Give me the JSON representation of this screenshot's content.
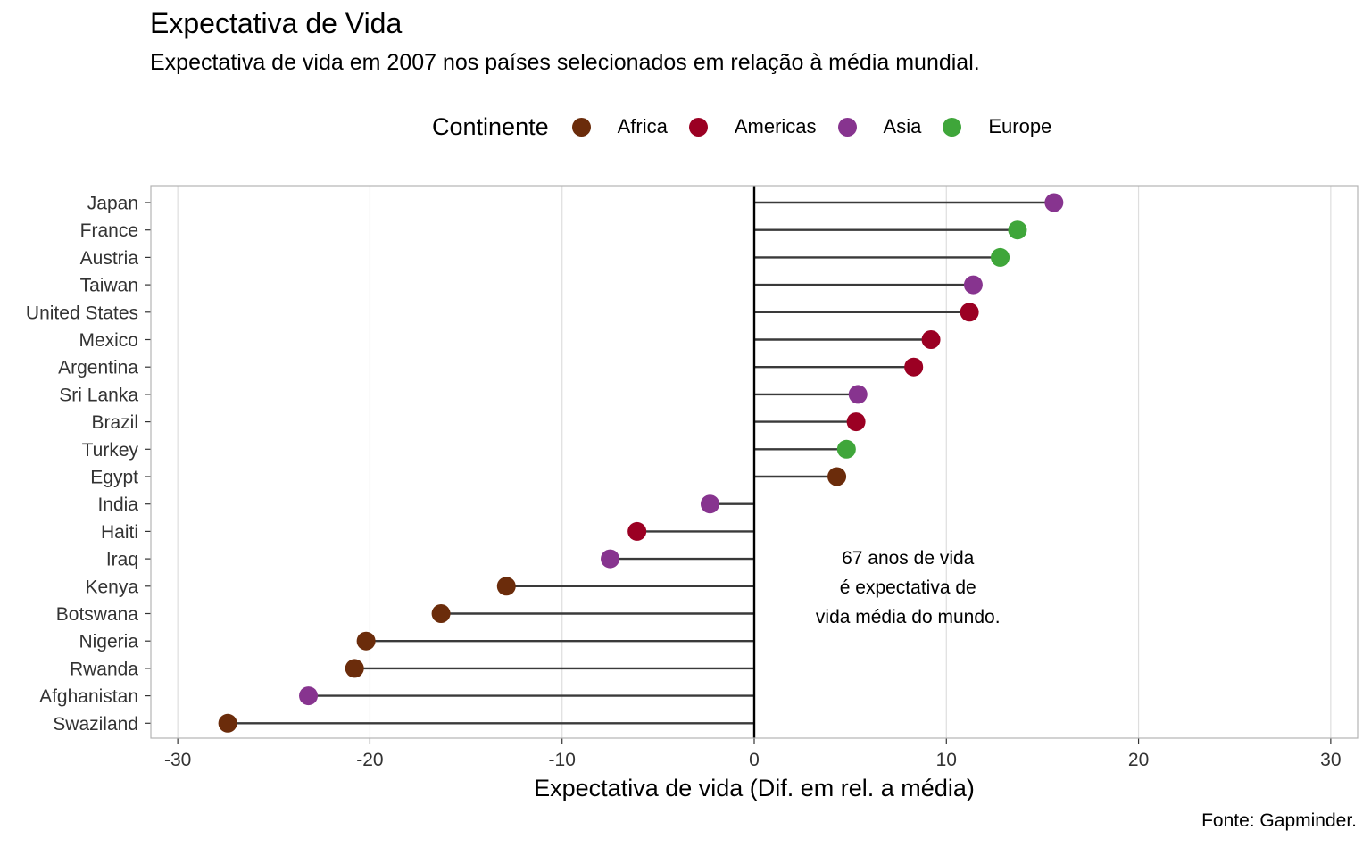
{
  "chart_data": {
    "type": "lollipop",
    "title": "Expectativa de Vida",
    "subtitle": "Expectativa de vida em 2007 nos países selecionados em relação à média mundial.",
    "xlabel": "Expectativa de vida (Dif. em rel. a média)",
    "ylabel": "",
    "caption": "Fonte: Gapminder.",
    "xlim": [
      -30,
      30
    ],
    "x_ticks": [
      -30,
      -20,
      -10,
      0,
      10,
      20,
      30
    ],
    "x_tick_labels": [
      "-30",
      "-20",
      "-10",
      "0",
      "10",
      "20",
      "30"
    ],
    "grid": true,
    "legend": {
      "title": "Continente",
      "position": "top",
      "entries": [
        {
          "name": "Africa",
          "color": "#6B2C0B"
        },
        {
          "name": "Americas",
          "color": "#9B0023"
        },
        {
          "name": "Asia",
          "color": "#87348F"
        },
        {
          "name": "Europe",
          "color": "#3FA63A"
        }
      ]
    },
    "annotation": {
      "lines": [
        "67 anos de vida",
        "é expectativa de",
        "vida média do mundo."
      ],
      "x": 8
    },
    "points": [
      {
        "country": "Japan",
        "value": 15.6,
        "continent": "Asia"
      },
      {
        "country": "France",
        "value": 13.7,
        "continent": "Europe"
      },
      {
        "country": "Austria",
        "value": 12.8,
        "continent": "Europe"
      },
      {
        "country": "Taiwan",
        "value": 11.4,
        "continent": "Asia"
      },
      {
        "country": "United States",
        "value": 11.2,
        "continent": "Americas"
      },
      {
        "country": "Mexico",
        "value": 9.2,
        "continent": "Americas"
      },
      {
        "country": "Argentina",
        "value": 8.3,
        "continent": "Americas"
      },
      {
        "country": "Sri Lanka",
        "value": 5.4,
        "continent": "Asia"
      },
      {
        "country": "Brazil",
        "value": 5.3,
        "continent": "Americas"
      },
      {
        "country": "Turkey",
        "value": 4.8,
        "continent": "Europe"
      },
      {
        "country": "Egypt",
        "value": 4.3,
        "continent": "Africa"
      },
      {
        "country": "India",
        "value": -2.3,
        "continent": "Asia"
      },
      {
        "country": "Haiti",
        "value": -6.1,
        "continent": "Americas"
      },
      {
        "country": "Iraq",
        "value": -7.5,
        "continent": "Asia"
      },
      {
        "country": "Kenya",
        "value": -12.9,
        "continent": "Africa"
      },
      {
        "country": "Botswana",
        "value": -16.3,
        "continent": "Africa"
      },
      {
        "country": "Nigeria",
        "value": -20.2,
        "continent": "Africa"
      },
      {
        "country": "Rwanda",
        "value": -20.8,
        "continent": "Africa"
      },
      {
        "country": "Afghanistan",
        "value": -23.2,
        "continent": "Asia"
      },
      {
        "country": "Swaziland",
        "value": -27.4,
        "continent": "Africa"
      }
    ]
  }
}
